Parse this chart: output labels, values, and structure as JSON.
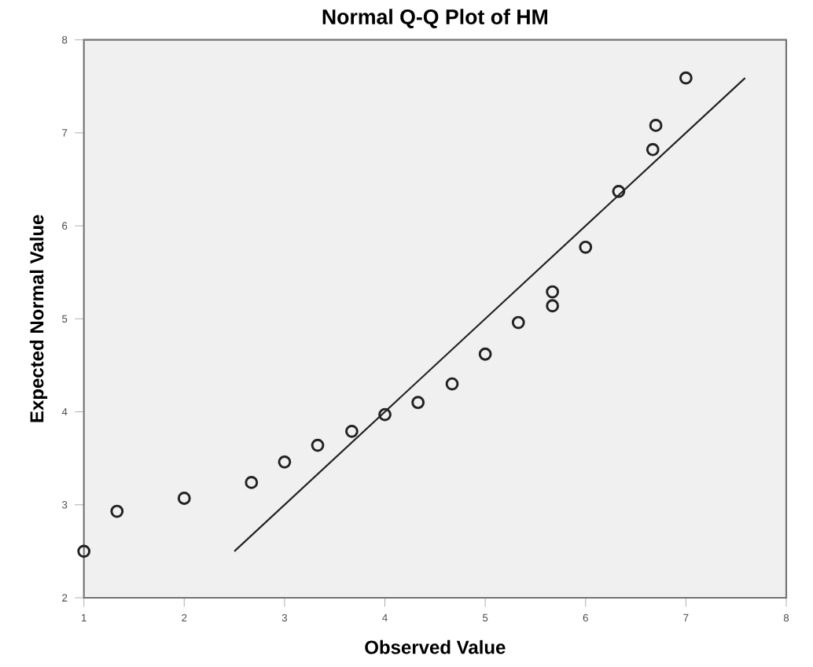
{
  "chart_data": {
    "type": "scatter",
    "title": "Normal Q-Q Plot of HM",
    "xlabel": "Observed Value",
    "ylabel": "Expected Normal Value",
    "xlim": [
      1,
      8
    ],
    "ylim": [
      2,
      8
    ],
    "xticks": [
      1,
      2,
      3,
      4,
      5,
      6,
      7,
      8
    ],
    "yticks": [
      2,
      3,
      4,
      5,
      6,
      7,
      8
    ],
    "grid": false,
    "marker": "circle",
    "series": [
      {
        "color": "#222222",
        "x": [
          1,
          1.33,
          2,
          2.67,
          3,
          3.33,
          3.67,
          4,
          4.33,
          4.67,
          5,
          5.33,
          5.67,
          5.67,
          6,
          6.33,
          6.67,
          6.7,
          7
        ],
        "values": [
          2.5,
          2.93,
          3.07,
          3.24,
          3.46,
          3.64,
          3.79,
          3.97,
          4.1,
          4.3,
          4.62,
          4.96,
          5.29,
          5.14,
          5.77,
          6.37,
          6.82,
          7.08,
          7.59
        ]
      },
      {
        "type": "line",
        "color": "#222222",
        "marker": "none",
        "x": [
          2.5,
          7.59
        ],
        "values": [
          2.5,
          7.59
        ]
      }
    ]
  }
}
